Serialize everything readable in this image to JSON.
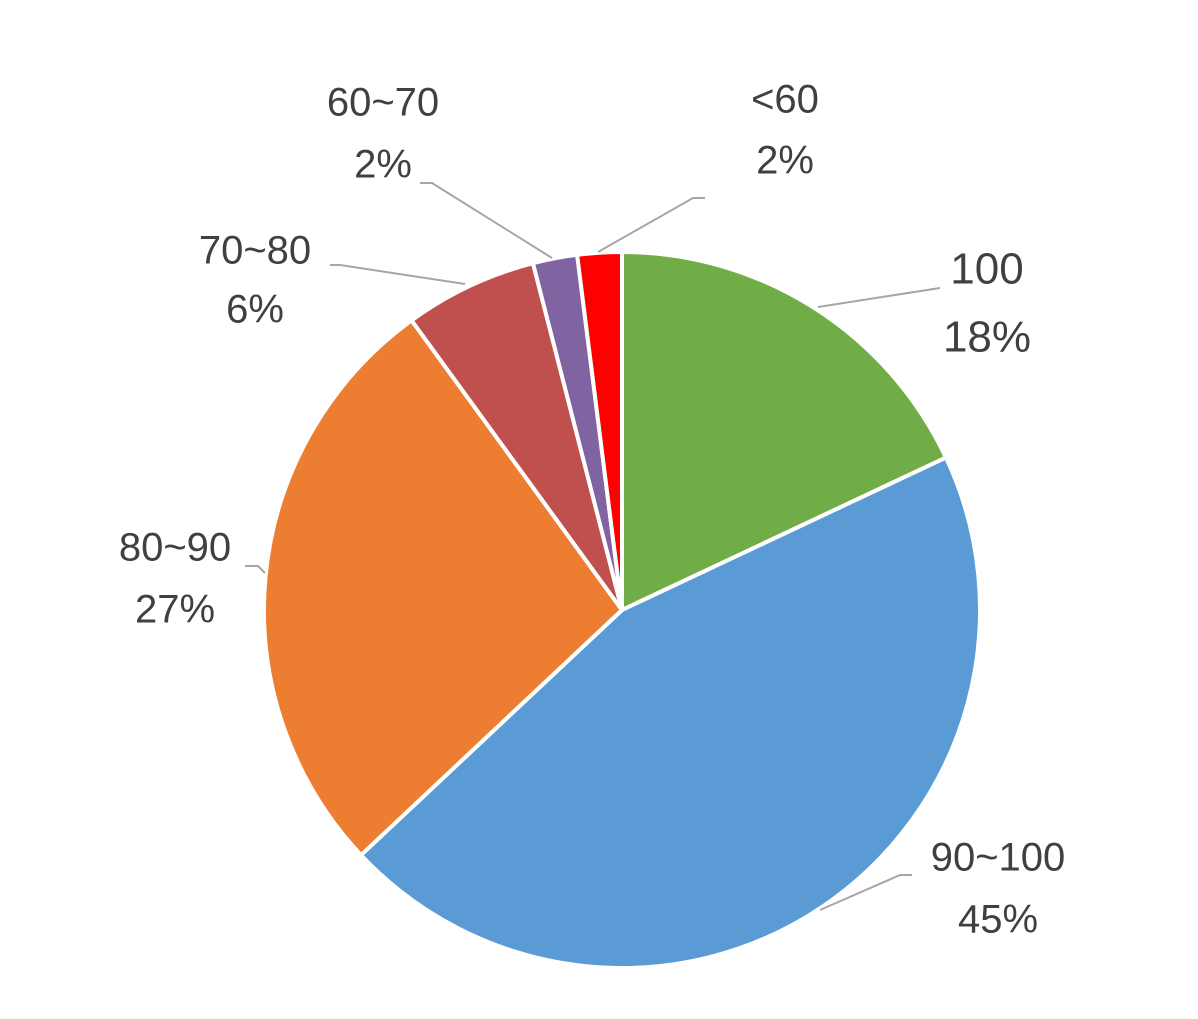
{
  "chart_data": {
    "type": "pie",
    "categories": [
      "100",
      "90~100",
      "80~90",
      "70~80",
      "60~70",
      "<60"
    ],
    "values": [
      18,
      45,
      27,
      6,
      2,
      2
    ],
    "value_labels": [
      "18%",
      "45%",
      "27%",
      "6%",
      "2%",
      "2%"
    ],
    "colors": [
      "#70ad47",
      "#5b9bd5",
      "#ed7d31",
      "#c0504d",
      "#8064a2",
      "#ff0000"
    ]
  }
}
